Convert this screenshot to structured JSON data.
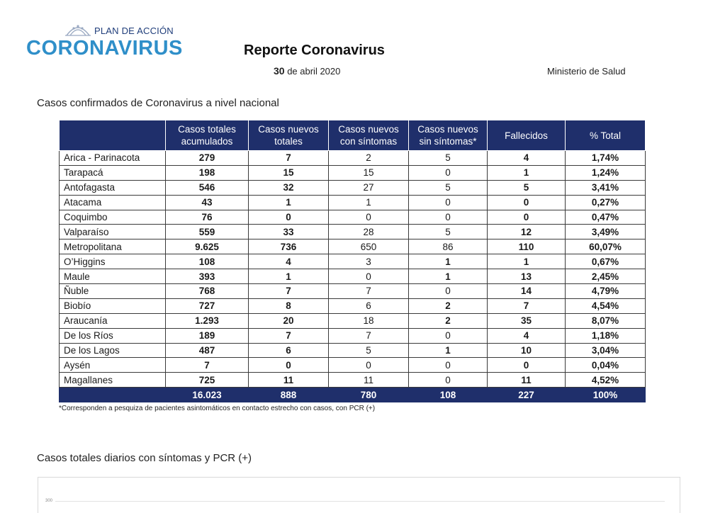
{
  "header": {
    "logo_top": "PLAN DE ACCIÓN",
    "logo_main": "CORONAVIRUS",
    "title": "Reporte Coronavirus",
    "date_day": "30",
    "date_rest": " de abril 2020",
    "ministry": "Ministerio de Salud"
  },
  "section_title": "Casos confirmados de Coronavirus a nivel nacional",
  "table": {
    "columns": [
      "",
      "Casos totales acumulados",
      "Casos nuevos totales",
      "Casos nuevos con síntomas",
      "Casos nuevos sin síntomas*",
      "Fallecidos",
      "% Total"
    ],
    "rows": [
      [
        "Arica - Parinacota",
        "279",
        "7",
        "2",
        "5",
        "4",
        "1,74%"
      ],
      [
        "Tarapacá",
        "198",
        "15",
        "15",
        "0",
        "1",
        "1,24%"
      ],
      [
        "Antofagasta",
        "546",
        "32",
        "27",
        "5",
        "5",
        "3,41%"
      ],
      [
        "Atacama",
        "43",
        "1",
        "1",
        "0",
        "0",
        "0,27%"
      ],
      [
        "Coquimbo",
        "76",
        "0",
        "0",
        "0",
        "0",
        "0,47%"
      ],
      [
        "Valparaíso",
        "559",
        "33",
        "28",
        "5",
        "12",
        "3,49%"
      ],
      [
        "Metropolitana",
        "9.625",
        "736",
        "650",
        "86",
        "110",
        "60,07%"
      ],
      [
        "O’Higgins",
        "108",
        "4",
        "3",
        "1",
        "1",
        "0,67%"
      ],
      [
        "Maule",
        "393",
        "1",
        "0",
        "1",
        "13",
        "2,45%"
      ],
      [
        "Ñuble",
        "768",
        "7",
        "7",
        "0",
        "14",
        "4,79%"
      ],
      [
        "Biobío",
        "727",
        "8",
        "6",
        "2",
        "7",
        "4,54%"
      ],
      [
        "Araucanía",
        "1.293",
        "20",
        "18",
        "2",
        "35",
        "8,07%"
      ],
      [
        "De los Ríos",
        "189",
        "7",
        "7",
        "0",
        "4",
        "1,18%"
      ],
      [
        "De los Lagos",
        "487",
        "6",
        "5",
        "1",
        "10",
        "3,04%"
      ],
      [
        "Aysén",
        "7",
        "0",
        "0",
        "0",
        "0",
        "0,04%"
      ],
      [
        "Magallanes",
        "725",
        "11",
        "11",
        "0",
        "11",
        "4,52%"
      ]
    ],
    "total": [
      "",
      "16.023",
      "888",
      "780",
      "108",
      "227",
      "100%"
    ]
  },
  "footnote": "*Corresponden a pesquiza de pacientes asintomáticos en contacto estrecho con casos, con PCR (+)",
  "chart_section": {
    "title": "Casos totales diarios con síntomas y PCR (+)",
    "tick_top": "300"
  },
  "colors": {
    "header_bg": "#1f2f6b",
    "logo_blue": "#2f8fc9",
    "logo_navy": "#1f3d7a"
  }
}
